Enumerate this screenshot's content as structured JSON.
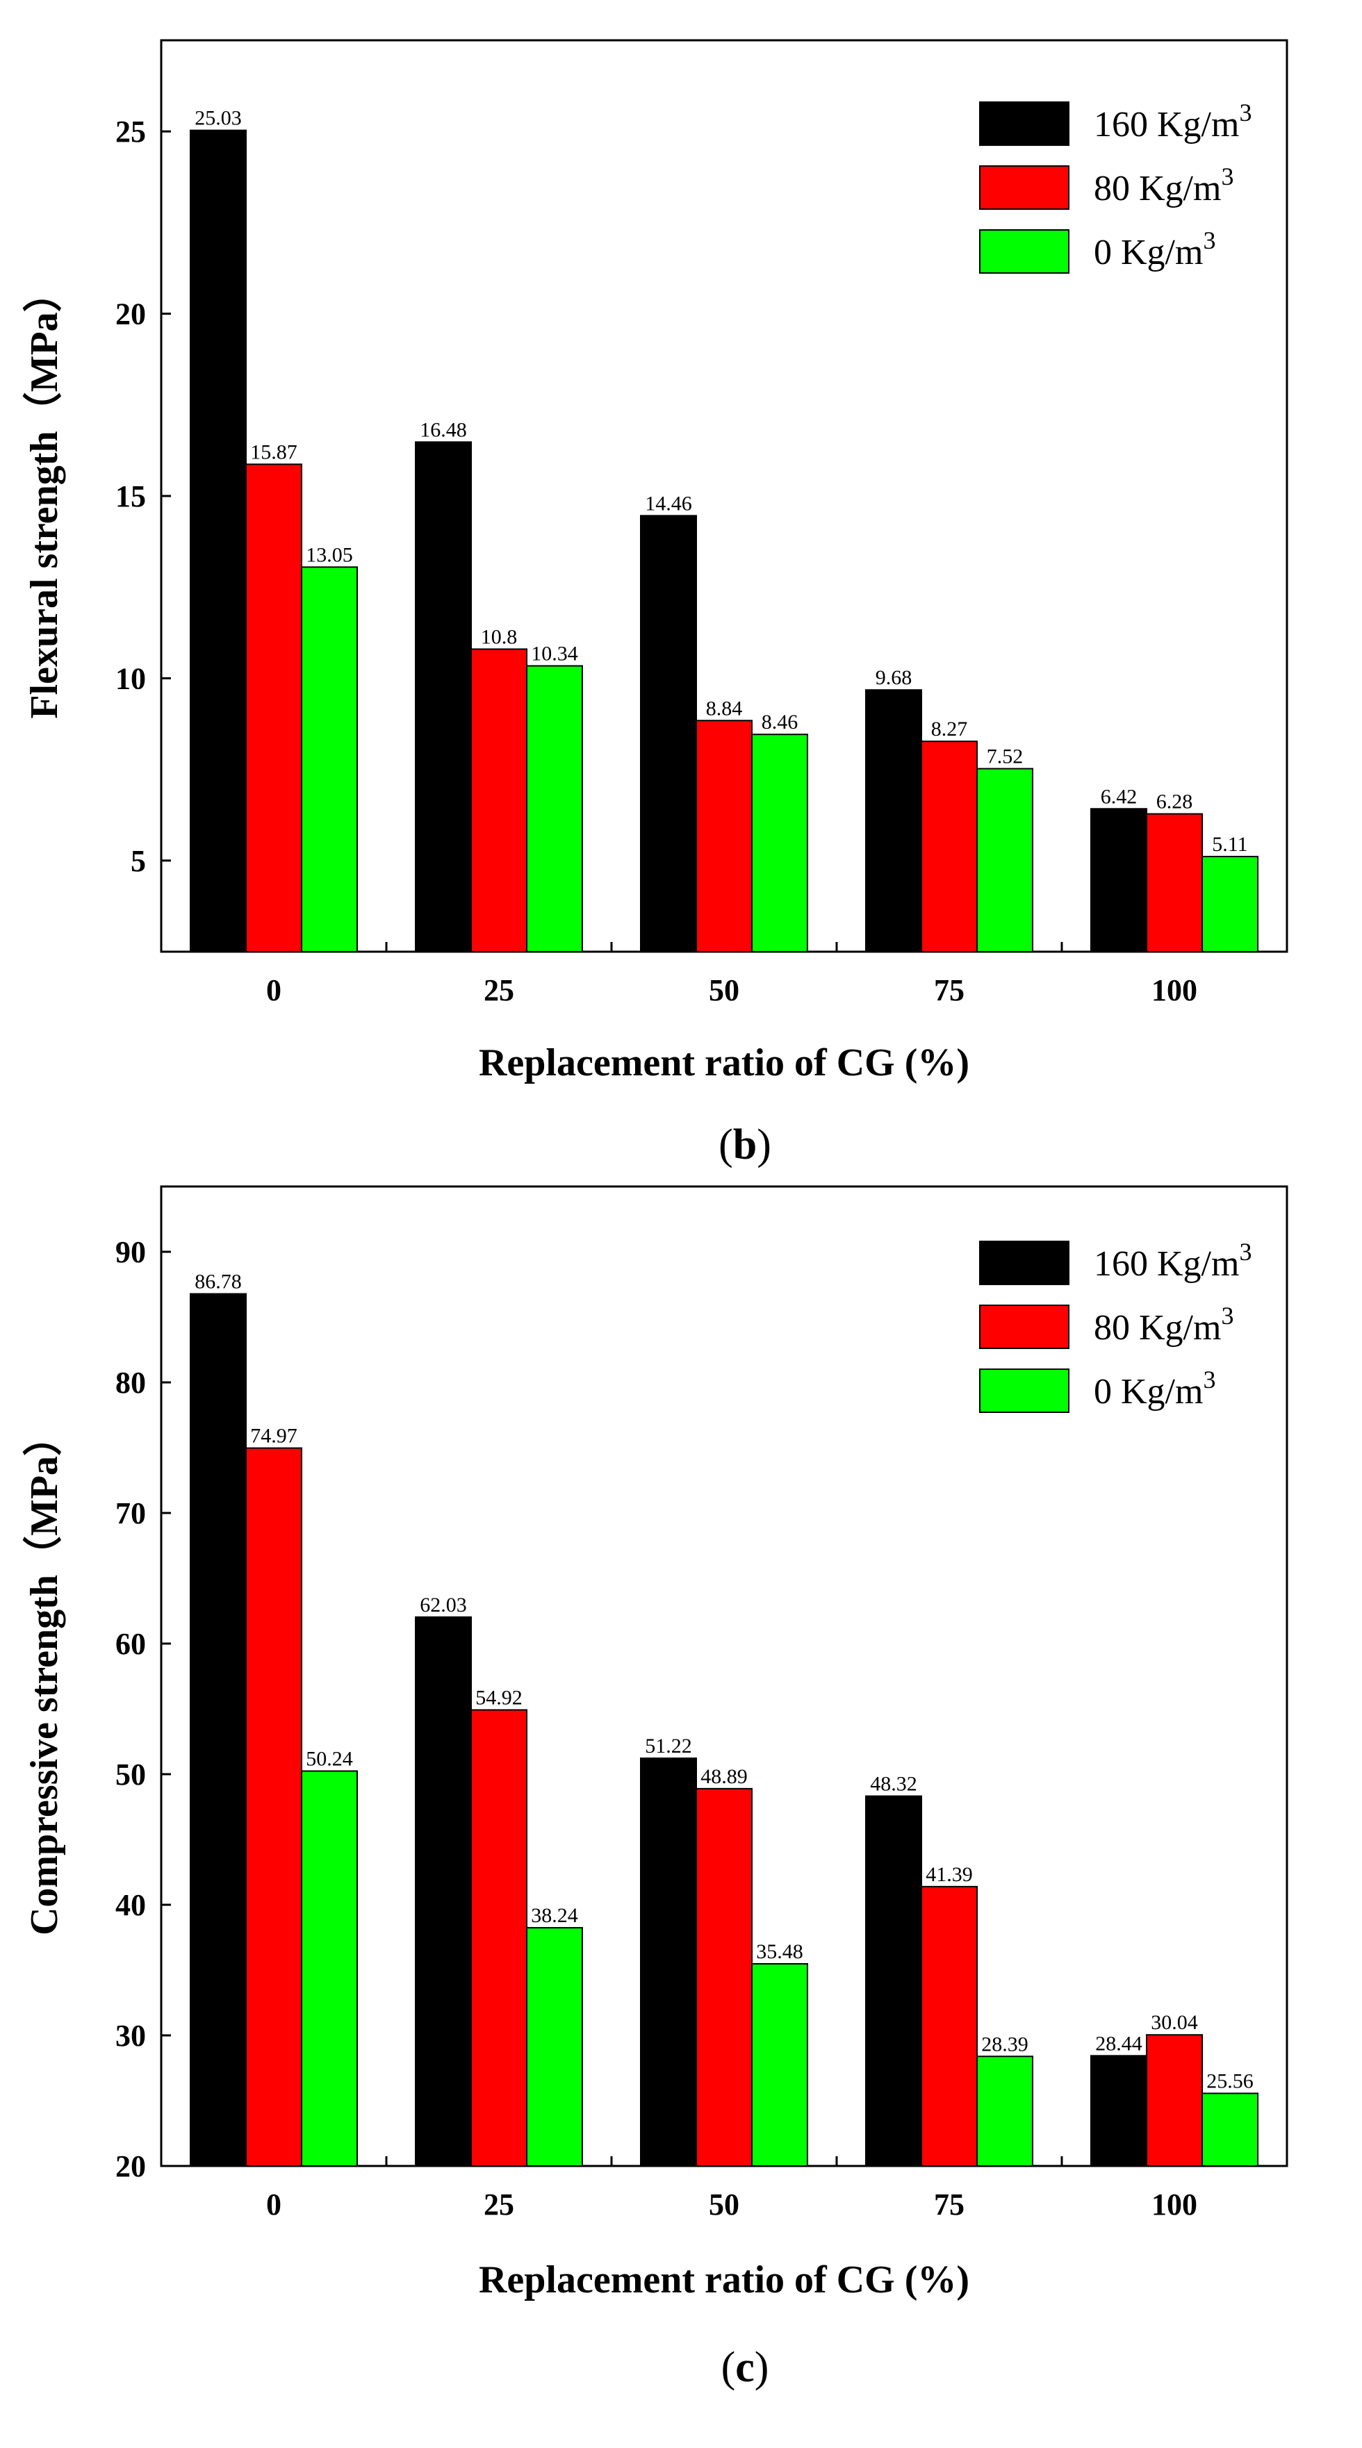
{
  "charts": [
    {
      "type": "bar",
      "panel_label": "(b)",
      "panel_letter": "b",
      "title": "",
      "xlabel": "Replacement ratio of CG (%)",
      "ylabel": "Flexural strength（MPa）",
      "categories": [
        "0",
        "25",
        "50",
        "75",
        "100"
      ],
      "ylim": [
        2.5,
        27.5
      ],
      "yticks": [
        5,
        10,
        15,
        20,
        25
      ],
      "legend_position": "top-right",
      "series": [
        {
          "name": "160 Kg/m",
          "sup": "3",
          "color": "#000000",
          "values": [
            25.03,
            16.48,
            14.46,
            9.68,
            6.42
          ],
          "labels": [
            "25.03",
            "16.48",
            "14.46",
            "9.68",
            "6.42"
          ]
        },
        {
          "name": "80 Kg/m",
          "sup": "3",
          "color": "#ff0000",
          "values": [
            15.87,
            10.8,
            8.84,
            8.27,
            6.28
          ],
          "labels": [
            "15.87",
            "10.8",
            "8.84",
            "8.27",
            "6.28"
          ]
        },
        {
          "name": "0 Kg/m",
          "sup": "3",
          "color": "#00ff00",
          "values": [
            13.05,
            10.34,
            8.46,
            7.52,
            5.11
          ],
          "labels": [
            "13.05",
            "10.34",
            "8.46",
            "7.52",
            "5.11"
          ]
        }
      ]
    },
    {
      "type": "bar",
      "panel_label": "(c)",
      "panel_letter": "c",
      "title": "",
      "xlabel": "Replacement ratio of CG (%)",
      "ylabel": "Compressive strength（MPa）",
      "categories": [
        "0",
        "25",
        "50",
        "75",
        "100"
      ],
      "ylim": [
        20,
        95
      ],
      "yticks": [
        20,
        30,
        40,
        50,
        60,
        70,
        80,
        90
      ],
      "legend_position": "top-right",
      "series": [
        {
          "name": "160 Kg/m",
          "sup": "3",
          "color": "#000000",
          "values": [
            86.78,
            62.03,
            51.22,
            48.32,
            28.44
          ],
          "labels": [
            "86.78",
            "62.03",
            "51.22",
            "48.32",
            "28.44"
          ]
        },
        {
          "name": "80 Kg/m",
          "sup": "3",
          "color": "#ff0000",
          "values": [
            74.97,
            54.92,
            48.89,
            41.39,
            30.04
          ],
          "labels": [
            "74.97",
            "54.92",
            "48.89",
            "41.39",
            "30.04"
          ]
        },
        {
          "name": "0 Kg/m",
          "sup": "3",
          "color": "#00ff00",
          "values": [
            50.24,
            38.24,
            35.48,
            28.39,
            25.56
          ],
          "labels": [
            "50.24",
            "38.24",
            "35.48",
            "28.39",
            "25.56"
          ]
        }
      ]
    }
  ]
}
